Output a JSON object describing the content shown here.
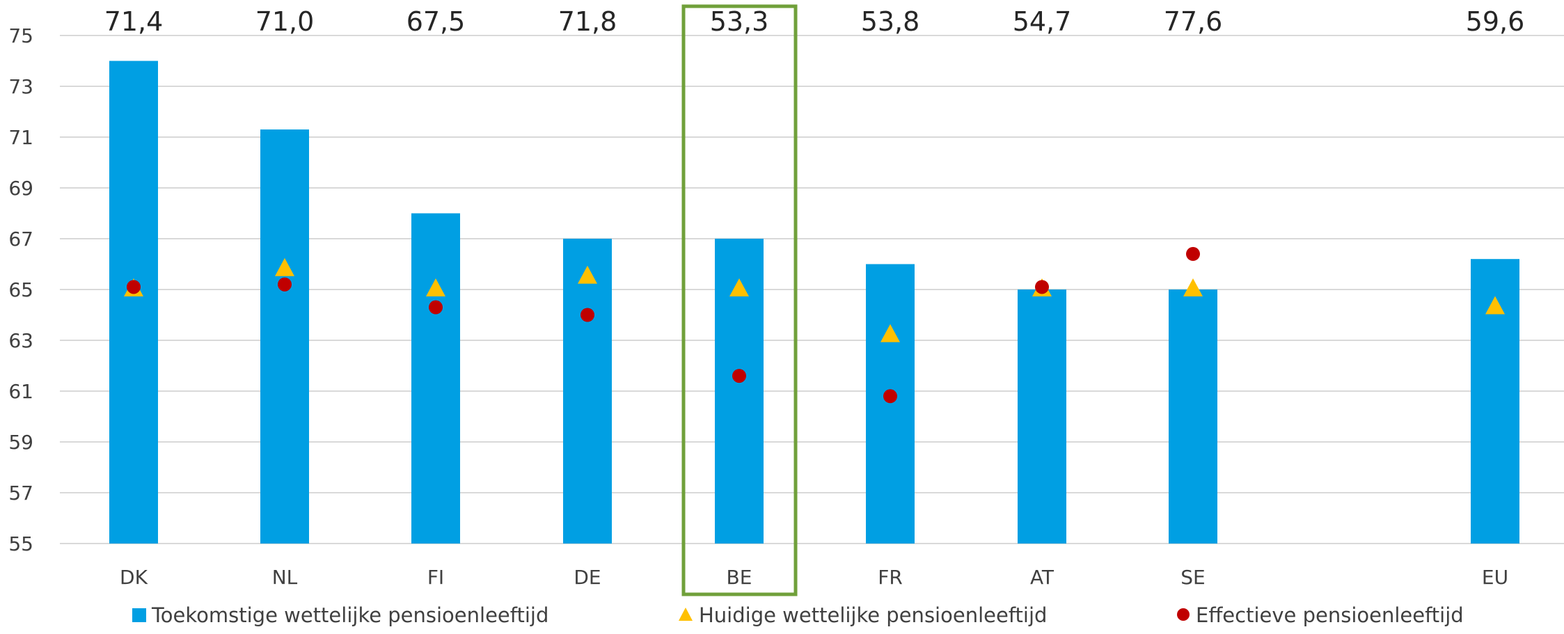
{
  "chart_data": {
    "type": "bar",
    "categories": [
      "DK",
      "NL",
      "FI",
      "DE",
      "BE",
      "FR",
      "AT",
      "SE",
      "EU"
    ],
    "series": [
      {
        "name": "Toekomstige wettelijke pensioenleeftijd",
        "kind": "bar",
        "color": "#009FE3",
        "values": [
          74,
          71.3,
          68,
          67,
          67,
          66,
          65,
          65,
          66.2
        ]
      },
      {
        "name": "Huidige wettelijke pensioenleeftijd",
        "kind": "triangle",
        "color": "#FFC000",
        "values": [
          65,
          65.8,
          65,
          65.5,
          65,
          63.2,
          65,
          65,
          64.3
        ]
      },
      {
        "name": "Effectieve pensioenleeftijd",
        "kind": "circle",
        "color": "#C00000",
        "values": [
          65.1,
          65.2,
          64.3,
          64,
          61.6,
          60.8,
          65.1,
          66.4,
          null
        ]
      }
    ],
    "top_labels": [
      "71,4",
      "71,0",
      "67,5",
      "71,8",
      "53,3",
      "53,8",
      "54,7",
      "77,6",
      "59,6"
    ],
    "y_ticks": [
      "55",
      "57",
      "59",
      "61",
      "63",
      "65",
      "67",
      "69",
      "71",
      "73",
      "75"
    ],
    "ylim": [
      55,
      75
    ],
    "grid": true,
    "legend_position": "bottom",
    "highlight_category": "BE",
    "highlight_color": "#70A03A",
    "title": "",
    "xlabel": "",
    "ylabel": ""
  }
}
